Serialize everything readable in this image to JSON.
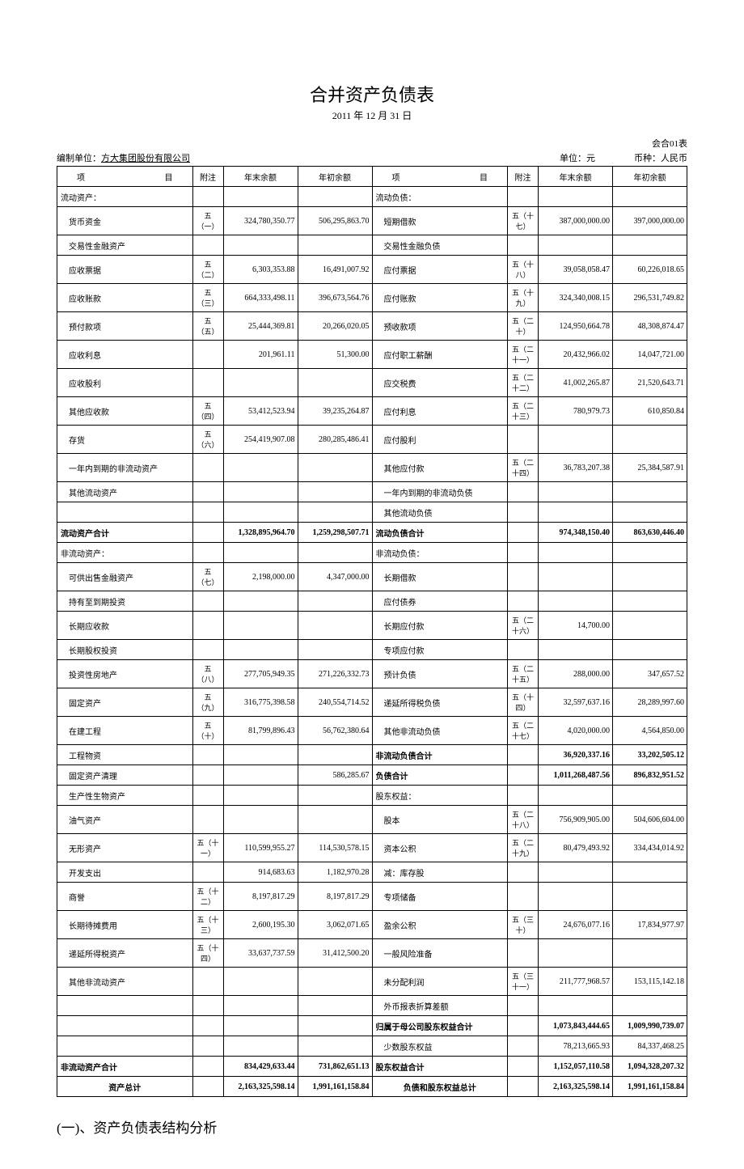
{
  "title": "合并资产负债表",
  "subtitle": "2011 年 12 月 31 日",
  "form_no": "会合01表",
  "prepared_by_label": "编制单位：",
  "prepared_by": "方大集团股份有限公司",
  "unit_label": "单位：元",
  "currency_label": "币种：人民币",
  "headers": {
    "item": "项        目",
    "note": "附注",
    "end": "年末余额",
    "beg": "年初余额"
  },
  "footer": "(一)、资产负债表结构分析",
  "rows": [
    {
      "l": {
        "t": "流动资产：",
        "b": 0,
        "i": 0
      },
      "r": {
        "t": "流动负债：",
        "b": 0,
        "i": 0
      }
    },
    {
      "l": {
        "t": "货币资金",
        "n": "五（一）",
        "e": "324,780,350.77",
        "g": "506,295,863.70",
        "i": 1
      },
      "r": {
        "t": "短期借款",
        "n": "五（十七）",
        "e": "387,000,000.00",
        "g": "397,000,000.00",
        "i": 1
      }
    },
    {
      "l": {
        "t": "交易性金融资产",
        "i": 1
      },
      "r": {
        "t": "交易性金融负债",
        "i": 1
      }
    },
    {
      "l": {
        "t": "应收票据",
        "n": "五（二）",
        "e": "6,303,353.88",
        "g": "16,491,007.92",
        "i": 1
      },
      "r": {
        "t": "应付票据",
        "n": "五（十八）",
        "e": "39,058,058.47",
        "g": "60,226,018.65",
        "i": 1
      }
    },
    {
      "l": {
        "t": "应收账款",
        "n": "五（三）",
        "e": "664,333,498.11",
        "g": "396,673,564.76",
        "i": 1
      },
      "r": {
        "t": "应付账款",
        "n": "五（十九）",
        "e": "324,340,008.15",
        "g": "296,531,749.82",
        "i": 1
      }
    },
    {
      "l": {
        "t": "预付款项",
        "n": "五（五）",
        "e": "25,444,369.81",
        "g": "20,266,020.05",
        "i": 1
      },
      "r": {
        "t": "预收款项",
        "n": "五（二十）",
        "e": "124,950,664.78",
        "g": "48,308,874.47",
        "i": 1
      }
    },
    {
      "l": {
        "t": "应收利息",
        "e": "201,961.11",
        "g": "51,300.00",
        "i": 1
      },
      "r": {
        "t": "应付职工薪酬",
        "n": "五（二十一）",
        "e": "20,432,966.02",
        "g": "14,047,721.00",
        "i": 1
      }
    },
    {
      "l": {
        "t": "应收股利",
        "i": 1
      },
      "r": {
        "t": "应交税费",
        "n": "五（二十二）",
        "e": "41,002,265.87",
        "g": "21,520,643.71",
        "i": 1
      }
    },
    {
      "l": {
        "t": "其他应收款",
        "n": "五（四）",
        "e": "53,412,523.94",
        "g": "39,235,264.87",
        "i": 1
      },
      "r": {
        "t": "应付利息",
        "n": "五（二十三）",
        "e": "780,979.73",
        "g": "610,850.84",
        "i": 1
      }
    },
    {
      "l": {
        "t": "存货",
        "n": "五（六）",
        "e": "254,419,907.08",
        "g": "280,285,486.41",
        "i": 1
      },
      "r": {
        "t": "应付股利",
        "i": 1
      }
    },
    {
      "l": {
        "t": "一年内到期的非流动资产",
        "i": 1
      },
      "r": {
        "t": "其他应付款",
        "n": "五（二十四）",
        "e": "36,783,207.38",
        "g": "25,384,587.91",
        "i": 1
      }
    },
    {
      "l": {
        "t": "其他流动资产",
        "i": 1
      },
      "r": {
        "t": "一年内到期的非流动负债",
        "i": 1
      }
    },
    {
      "l": {
        "t": "",
        "i": 1
      },
      "r": {
        "t": "其他流动负债",
        "i": 1
      }
    },
    {
      "l": {
        "t": "流动资产合计",
        "e": "1,328,895,964.70",
        "g": "1,259,298,507.71",
        "b": 1,
        "i": 0
      },
      "r": {
        "t": "流动负债合计",
        "e": "974,348,150.40",
        "g": "863,630,446.40",
        "b": 1,
        "i": 0
      }
    },
    {
      "l": {
        "t": "非流动资产：",
        "i": 0
      },
      "r": {
        "t": "非流动负债：",
        "i": 0
      }
    },
    {
      "l": {
        "t": "可供出售金融资产",
        "n": "五（七）",
        "e": "2,198,000.00",
        "g": "4,347,000.00",
        "i": 1
      },
      "r": {
        "t": "长期借款",
        "i": 1
      }
    },
    {
      "l": {
        "t": "持有至到期投资",
        "i": 1
      },
      "r": {
        "t": "应付债券",
        "i": 1
      }
    },
    {
      "l": {
        "t": "长期应收款",
        "i": 1
      },
      "r": {
        "t": "长期应付款",
        "n": "五（二十六）",
        "e": "14,700.00",
        "i": 1
      }
    },
    {
      "l": {
        "t": "长期股权投资",
        "i": 1
      },
      "r": {
        "t": "专项应付款",
        "i": 1
      }
    },
    {
      "l": {
        "t": "投资性房地产",
        "n": "五（八）",
        "e": "277,705,949.35",
        "g": "271,226,332.73",
        "i": 1
      },
      "r": {
        "t": "预计负债",
        "n": "五（二十五）",
        "e": "288,000.00",
        "g": "347,657.52",
        "i": 1
      }
    },
    {
      "l": {
        "t": "固定资产",
        "n": "五（九）",
        "e": "316,775,398.58",
        "g": "240,554,714.52",
        "i": 1
      },
      "r": {
        "t": "递延所得税负债",
        "n": "五（十四）",
        "e": "32,597,637.16",
        "g": "28,289,997.60",
        "i": 1
      }
    },
    {
      "l": {
        "t": "在建工程",
        "n": "五（十）",
        "e": "81,799,896.43",
        "g": "56,762,380.64",
        "i": 1
      },
      "r": {
        "t": "其他非流动负债",
        "n": "五（二十七）",
        "e": "4,020,000.00",
        "g": "4,564,850.00",
        "i": 1
      }
    },
    {
      "l": {
        "t": "工程物资",
        "i": 1
      },
      "r": {
        "t": "非流动负债合计",
        "e": "36,920,337.16",
        "g": "33,202,505.12",
        "b": 1,
        "i": 0
      }
    },
    {
      "l": {
        "t": "固定资产清理",
        "g": "586,285.67",
        "i": 1
      },
      "r": {
        "t": "负债合计",
        "e": "1,011,268,487.56",
        "g": "896,832,951.52",
        "b": 1,
        "i": 0
      }
    },
    {
      "l": {
        "t": "生产性生物资产",
        "i": 1
      },
      "r": {
        "t": "股东权益：",
        "i": 0
      }
    },
    {
      "l": {
        "t": "油气资产",
        "i": 1
      },
      "r": {
        "t": "股本",
        "n": "五（二十八）",
        "e": "756,909,905.00",
        "g": "504,606,604.00",
        "i": 1
      }
    },
    {
      "l": {
        "t": "无形资产",
        "n": "五（十一）",
        "e": "110,599,955.27",
        "g": "114,530,578.15",
        "i": 1
      },
      "r": {
        "t": "资本公积",
        "n": "五（二十九）",
        "e": "80,479,493.92",
        "g": "334,434,014.92",
        "i": 1
      }
    },
    {
      "l": {
        "t": "开发支出",
        "e": "914,683.63",
        "g": "1,182,970.28",
        "i": 1
      },
      "r": {
        "t": "减：库存股",
        "i": 1
      }
    },
    {
      "l": {
        "t": "商誉",
        "n": "五（十二）",
        "e": "8,197,817.29",
        "g": "8,197,817.29",
        "i": 1
      },
      "r": {
        "t": "专项储备",
        "i": 1
      }
    },
    {
      "l": {
        "t": "长期待摊费用",
        "n": "五（十三）",
        "e": "2,600,195.30",
        "g": "3,062,071.65",
        "i": 1
      },
      "r": {
        "t": "盈余公积",
        "n": "五（三十）",
        "e": "24,676,077.16",
        "g": "17,834,977.97",
        "i": 1
      }
    },
    {
      "l": {
        "t": "递延所得税资产",
        "n": "五（十四）",
        "e": "33,637,737.59",
        "g": "31,412,500.20",
        "i": 1
      },
      "r": {
        "t": "一般风险准备",
        "i": 1
      }
    },
    {
      "l": {
        "t": "其他非流动资产",
        "i": 1
      },
      "r": {
        "t": "未分配利润",
        "n": "五（三十一）",
        "e": "211,777,968.57",
        "g": "153,115,142.18",
        "i": 1
      }
    },
    {
      "l": {
        "t": "",
        "i": 1
      },
      "r": {
        "t": "外币报表折算差额",
        "i": 1
      }
    },
    {
      "l": {
        "t": "",
        "i": 1
      },
      "r": {
        "t": "归属于母公司股东权益合计",
        "e": "1,073,843,444.65",
        "g": "1,009,990,739.07",
        "b": 1,
        "i": 0
      }
    },
    {
      "l": {
        "t": "",
        "i": 1
      },
      "r": {
        "t": "少数股东权益",
        "e": "78,213,665.93",
        "g": "84,337,468.25",
        "i": 1
      }
    },
    {
      "l": {
        "t": "非流动资产合计",
        "e": "834,429,633.44",
        "g": "731,862,651.13",
        "b": 1,
        "i": 0
      },
      "r": {
        "t": "股东权益合计",
        "e": "1,152,057,110.58",
        "g": "1,094,328,207.32",
        "b": 1,
        "i": 0
      }
    },
    {
      "l": {
        "t": "资产总计",
        "e": "2,163,325,598.14",
        "g": "1,991,161,158.84",
        "b": 1,
        "i": 0,
        "c": 1
      },
      "r": {
        "t": "负债和股东权益总计",
        "e": "2,163,325,598.14",
        "g": "1,991,161,158.84",
        "b": 1,
        "i": 0,
        "c": 1
      }
    }
  ]
}
